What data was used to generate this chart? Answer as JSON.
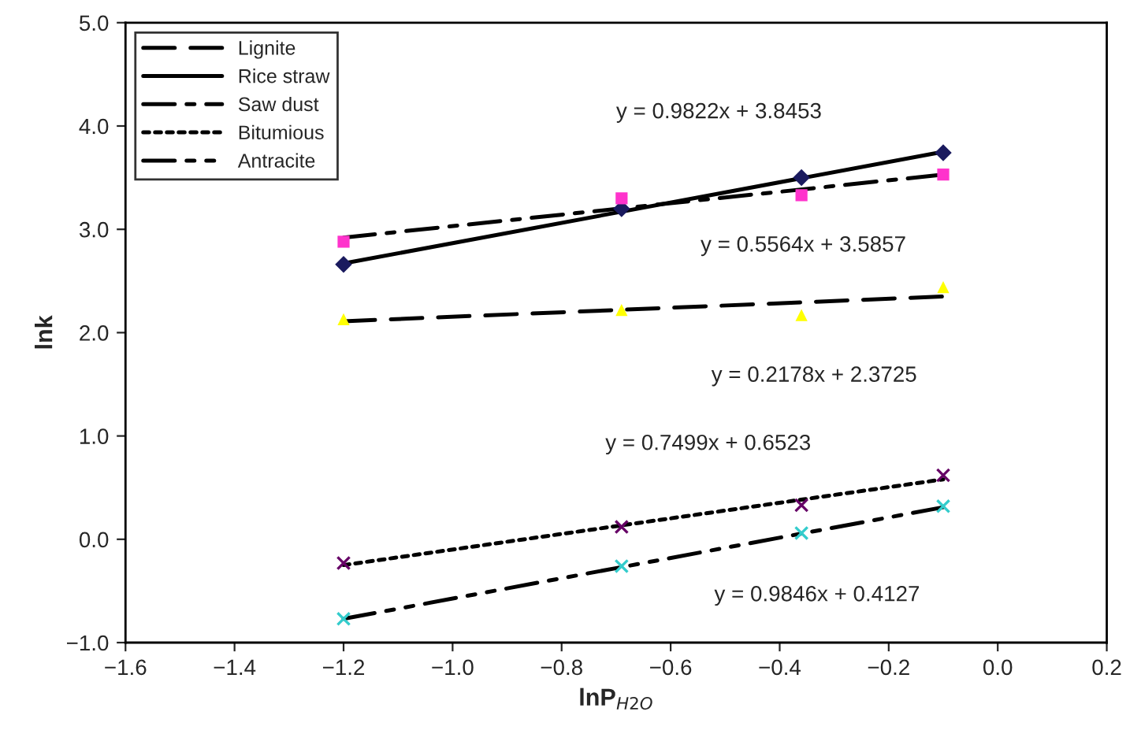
{
  "chart_data": {
    "type": "scatter",
    "xlabel": "lnP$_{H2O}$",
    "ylabel": "lnk",
    "xlim": [
      -1.6,
      0.2
    ],
    "ylim": [
      -1.0,
      5.0
    ],
    "xticks": [
      {
        "value": -1.6,
        "label": "−1.6"
      },
      {
        "value": -1.4,
        "label": "−1.4"
      },
      {
        "value": -1.2,
        "label": "−1.2"
      },
      {
        "value": -1.0,
        "label": "−1.0"
      },
      {
        "value": -0.8,
        "label": "−0.8"
      },
      {
        "value": -0.6,
        "label": "−0.6"
      },
      {
        "value": -0.4,
        "label": "−0.4"
      },
      {
        "value": -0.2,
        "label": "−0.2"
      },
      {
        "value": 0.0,
        "label": "0.0"
      },
      {
        "value": 0.2,
        "label": "0.2"
      }
    ],
    "yticks": [
      {
        "value": -1.0,
        "label": "−1.0"
      },
      {
        "value": 0.0,
        "label": "0.0"
      },
      {
        "value": 1.0,
        "label": "1.0"
      },
      {
        "value": 2.0,
        "label": "2.0"
      },
      {
        "value": 3.0,
        "label": "3.0"
      },
      {
        "value": 4.0,
        "label": "4.0"
      },
      {
        "value": 5.0,
        "label": "5.0"
      }
    ],
    "grid": false,
    "legend": "top left",
    "series": [
      {
        "type": "line",
        "name": "Lignite",
        "color": "#000000",
        "line_style": "dashed",
        "marker": "none",
        "x": [
          -1.2,
          -0.1
        ],
        "values": [
          2.11,
          2.35
        ]
      },
      {
        "type": "line",
        "name": "Rice straw",
        "color": "#000000",
        "line_style": "solid",
        "marker": "none",
        "x": [
          -1.2,
          -0.1
        ],
        "values": [
          2.67,
          3.75
        ]
      },
      {
        "type": "line",
        "name": "Saw dust",
        "color": "#000000",
        "line_style": "dashdot",
        "marker": "none",
        "x": [
          -1.2,
          -0.1
        ],
        "values": [
          2.92,
          3.53
        ]
      },
      {
        "type": "line",
        "name": "Bitumious",
        "color": "#000000",
        "line_style": "dotted",
        "marker": "none",
        "x": [
          -1.2,
          -0.1
        ],
        "values": [
          -0.25,
          0.58
        ]
      },
      {
        "type": "line",
        "name": "Antracite",
        "color": "#000000",
        "line_style": "dashdotdot",
        "marker": "none",
        "x": [
          -1.2,
          -0.1
        ],
        "values": [
          -0.77,
          0.31
        ]
      },
      {
        "color": "#ffff00",
        "marker": "triangle",
        "x": [
          -1.2,
          -0.69,
          -0.36,
          -0.1
        ],
        "values": [
          2.13,
          2.22,
          2.17,
          2.44
        ]
      },
      {
        "color": "#1a1a5e",
        "marker": "diamond",
        "x": [
          -1.2,
          -0.69,
          -0.36,
          -0.1
        ],
        "values": [
          2.66,
          3.2,
          3.5,
          3.74
        ]
      },
      {
        "color": "#ff33cc",
        "marker": "square",
        "x": [
          -1.2,
          -0.69,
          -0.36,
          -0.1
        ],
        "values": [
          2.88,
          3.3,
          3.33,
          3.53
        ]
      },
      {
        "color": "#660066",
        "marker": "cross",
        "x": [
          -1.2,
          -0.69,
          -0.36,
          -0.1
        ],
        "values": [
          -0.23,
          0.12,
          0.33,
          0.62
        ]
      },
      {
        "color": "#33cccc",
        "marker": "cross",
        "x": [
          -1.2,
          -0.69,
          -0.36,
          -0.1
        ],
        "values": [
          -0.77,
          -0.26,
          0.06,
          0.32
        ]
      }
    ],
    "annotations": [
      "y = 0.9822x + 3.8453",
      "y = 0.5564x + 3.5857",
      "y = 0.2178x + 2.3725",
      "y = 0.7499x + 0.6523",
      "y = 0.9846x + 0.4127"
    ]
  }
}
